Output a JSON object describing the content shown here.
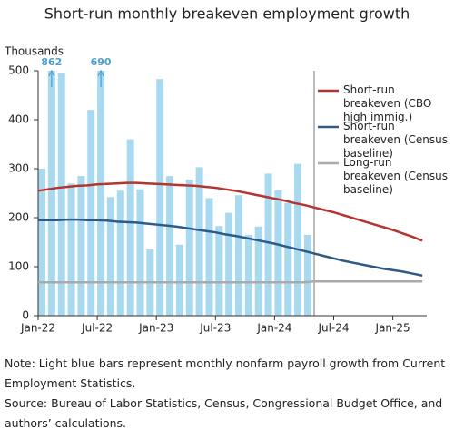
{
  "chart_data": {
    "type": "bar_line",
    "title": "Short-run monthly breakeven employment growth",
    "y_label": "Thousands",
    "categories": [
      "Jan-22",
      null,
      null,
      null,
      null,
      null,
      "Jul-22",
      null,
      null,
      null,
      null,
      null,
      "Jan-23",
      null,
      null,
      null,
      null,
      null,
      "Jul-23",
      null,
      null,
      null,
      null,
      null,
      "Jan-24",
      null,
      null,
      null,
      null,
      null,
      "Jul-24",
      null,
      null,
      null,
      null,
      null,
      "Jan-25",
      null,
      null,
      null
    ],
    "bars": {
      "color": "#a9d9ef",
      "values": [
        300,
        862,
        495,
        270,
        285,
        420,
        690,
        242,
        255,
        360,
        258,
        135,
        483,
        285,
        145,
        278,
        303,
        240,
        183,
        210,
        246,
        165,
        182,
        290,
        256,
        230,
        310,
        165,
        null,
        null,
        null,
        null,
        null,
        null,
        null,
        null,
        null,
        null,
        null,
        null
      ]
    },
    "series": [
      {
        "name": "Short-run breakeven (CBO high immig.)",
        "color": "#b5342f",
        "values": [
          255,
          258,
          261,
          263,
          265,
          266,
          268,
          269,
          270,
          271,
          271,
          270,
          269,
          268,
          267,
          266,
          265,
          263,
          261,
          258,
          255,
          251,
          247,
          243,
          239,
          235,
          230,
          226,
          221,
          216,
          211,
          205,
          199,
          193,
          187,
          181,
          175,
          168,
          161,
          153
        ]
      },
      {
        "name": "Short-run breakeven (Census baseline)",
        "color": "#2e5a87",
        "values": [
          195,
          195,
          195,
          196,
          196,
          195,
          195,
          194,
          192,
          191,
          190,
          188,
          186,
          184,
          182,
          179,
          176,
          173,
          170,
          166,
          163,
          159,
          155,
          151,
          147,
          142,
          137,
          132,
          127,
          122,
          117,
          112,
          108,
          104,
          100,
          96,
          93,
          90,
          86,
          82
        ]
      },
      {
        "name": "Long-run breakeven (Census baseline)",
        "color": "#aaaaaa",
        "values": [
          68,
          68,
          68,
          68,
          68,
          68,
          68,
          68,
          68,
          68,
          68,
          68,
          68,
          68,
          68,
          68,
          68,
          68,
          68,
          68,
          68,
          68,
          68,
          68,
          68,
          68,
          68,
          68,
          70,
          70,
          70,
          70,
          70,
          70,
          70,
          70,
          70,
          70,
          70,
          70
        ]
      }
    ],
    "ylim": [
      0,
      500
    ],
    "yticks": [
      0,
      100,
      200,
      300,
      400,
      500
    ],
    "note": "Note: Light blue bars represent monthly nonfarm payroll growth from Current Employment Statistics.",
    "source": "Source: Bureau of Labor Statistics, Census, Congressional Budget Office, and authors’ calculations."
  }
}
